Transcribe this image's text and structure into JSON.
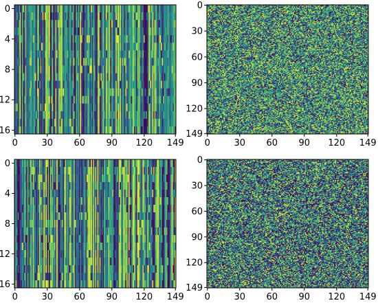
{
  "figure": {
    "layout": "2x2 grid of heatmaps",
    "colormap": "viridis",
    "colormap_stops": [
      "#440154",
      "#3b528b",
      "#21918c",
      "#5ec962",
      "#fde725"
    ]
  },
  "chart_data": [
    {
      "type": "heatmap",
      "title": "",
      "rows": 17,
      "cols": 150,
      "x_ticks": [
        0,
        30,
        60,
        90,
        120,
        149
      ],
      "y_ticks": [
        0,
        4,
        8,
        12,
        16
      ],
      "xlim": [
        0,
        149
      ],
      "ylim": [
        16,
        0
      ],
      "value_range": [
        0,
        1
      ],
      "pattern": "random values, strongly column-correlated (vertical stripes)",
      "seed": 11
    },
    {
      "type": "heatmap",
      "title": "",
      "rows": 150,
      "cols": 150,
      "x_ticks": [
        0,
        30,
        60,
        90,
        120,
        149
      ],
      "y_ticks": [
        0,
        30,
        60,
        90,
        120,
        149
      ],
      "xlim": [
        0,
        149
      ],
      "ylim": [
        149,
        0
      ],
      "value_range": [
        0,
        1
      ],
      "pattern": "uniform random noise",
      "seed": 23
    },
    {
      "type": "heatmap",
      "title": "",
      "rows": 17,
      "cols": 150,
      "x_ticks": [
        0,
        30,
        60,
        90,
        120,
        149
      ],
      "y_ticks": [
        0,
        4,
        8,
        12,
        16
      ],
      "xlim": [
        0,
        149
      ],
      "ylim": [
        16,
        0
      ],
      "value_range": [
        0,
        1
      ],
      "pattern": "random values, strongly column-correlated (vertical stripes)",
      "seed": 37
    },
    {
      "type": "heatmap",
      "title": "",
      "rows": 150,
      "cols": 150,
      "x_ticks": [
        0,
        30,
        60,
        90,
        120,
        149
      ],
      "y_ticks": [
        0,
        30,
        60,
        90,
        120,
        149
      ],
      "xlim": [
        0,
        149
      ],
      "ylim": [
        149,
        0
      ],
      "value_range": [
        0,
        1
      ],
      "pattern": "uniform random noise, darker overall",
      "seed": 51
    }
  ]
}
